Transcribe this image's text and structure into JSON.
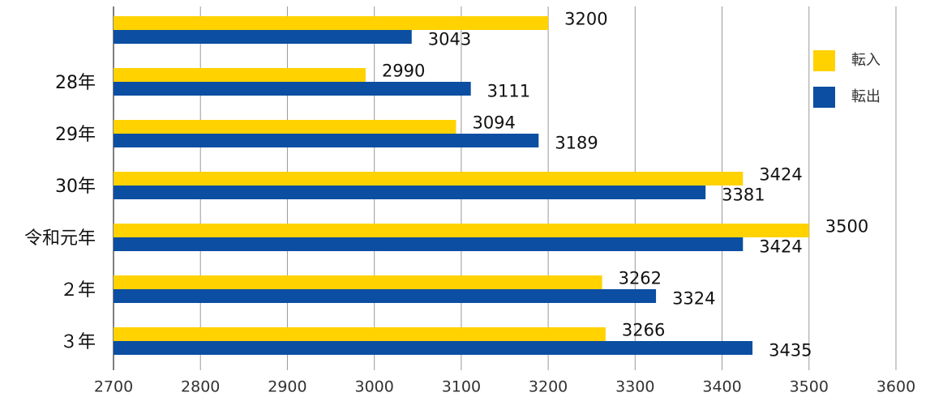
{
  "chart_data": {
    "type": "bar",
    "orientation": "horizontal",
    "categories": [
      null,
      "28年",
      "29年",
      "30年",
      "令和元年",
      "２年",
      "３年"
    ],
    "series": [
      {
        "name": "転入",
        "color": "#ffd200",
        "values": [
          3200,
          2990,
          3094,
          3424,
          3500,
          3262,
          3266
        ]
      },
      {
        "name": "転出",
        "color": "#0b4ea2",
        "values": [
          3043,
          3111,
          3189,
          3381,
          3424,
          3324,
          3435
        ]
      }
    ],
    "xlim": [
      2700,
      3600
    ],
    "xticks": [
      2700,
      2800,
      2900,
      3000,
      3100,
      3200,
      3300,
      3400,
      3500,
      3600
    ],
    "grid": true,
    "legend": "right"
  }
}
